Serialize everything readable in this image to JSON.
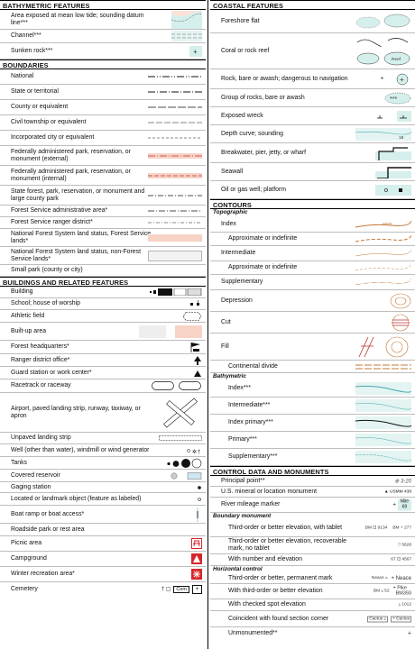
{
  "left": {
    "bathymetric": {
      "header": "BATHYMETRIC FEATURES",
      "items": [
        "Area exposed at mean low tide; sounding datum line***",
        "Channel***",
        "Sunken rock***"
      ]
    },
    "boundaries": {
      "header": "BOUNDARIES",
      "items": [
        "National",
        "State or territorial",
        "County or equivalent",
        "Civil township or equivalent",
        "Incorporated city or equivalent",
        "Federally administered park, reservation, or monument (external)",
        "Federally administered park, reservation, or monument (internal)",
        "State forest, park, reservation, or monument and large county park",
        "Forest Service administrative area*",
        "Forest Service ranger district*",
        "National Forest System land status, Forest Service lands*",
        "National Forest System land status, non-Forest Service lands*",
        "Small park (county or city)"
      ]
    },
    "buildings": {
      "header": "BUILDINGS AND RELATED FEATURES",
      "items": [
        "Building",
        "School; house of worship",
        "Athletic  field",
        "Built-up area",
        "Forest headquarters*",
        "Ranger district office*",
        "Guard station or work center*",
        "Racetrack or raceway",
        "Airport, paved landing strip, runway, taxiway, or apron",
        "Unpaved landing strip",
        "Well (other than water), windmill or wind generator",
        "Tanks",
        "Covered reservoir",
        "Gaging station",
        "Located or landmark object (feature as labeled)",
        "Boat ramp or boat access*",
        "Roadside park or rest area",
        "Picnic area",
        "Campground",
        "Winter recreation area*",
        "Cemetery"
      ],
      "cemetery_label": "Cem"
    }
  },
  "right": {
    "coastal": {
      "header": "COASTAL FEATURES",
      "items": [
        "Foreshore flat",
        "Coral or rock reef",
        "Rock, bare or awash; dangerous to navigation",
        "Group of rocks, bare or awash",
        "Exposed wreck",
        "Depth curve; sounding",
        "Breakwater, pier, jetty, or wharf",
        "Seawall",
        "Oil or gas well; platform"
      ],
      "reef_label": "Reef",
      "sounding": "18"
    },
    "contours": {
      "header": "CONTOURS",
      "topographic_label": "Topographic",
      "topographic": [
        "Index",
        "Approximate or indefinite",
        "Intermediate",
        "Approximate or indefinite",
        "Supplementary",
        "Depression",
        "Cut",
        "Fill",
        "Continental divide"
      ],
      "index_value": "6000",
      "bathymetric_label": "Bathymetric",
      "bathymetric": [
        "Index***",
        "Intermediate***",
        "Index primary***",
        "Primary***",
        "Supplementary***"
      ]
    },
    "control": {
      "header": "CONTROL DATA AND MONUMENTS",
      "principal_point": "Principal point**",
      "principal_symbol": "3-20",
      "mineral": "U.S. mineral or location monument",
      "mineral_symbol": "USMM 438",
      "river": "River mileage marker",
      "river_mile": "Mile",
      "river_num": "69",
      "boundary_label": "Boundary monument",
      "boundary": [
        "Third-order or better elevation, with tablet",
        "Third-order or better elevation, recoverable mark, no tablet",
        "With number and elevation"
      ],
      "bm1": "BM",
      "bm1_elev": "9134",
      "bm1b": "BM",
      "bm1b_elev": "277",
      "bm2": "5628",
      "bm3_num": "67",
      "bm3_elev": "4567",
      "horizontal_label": "Horizontal control",
      "horizontal": [
        "Third-order or better, permanent mark",
        "With third-order or better elevation",
        "With checked spot elevation",
        "Coincident with found section corner",
        "Unmonumented**"
      ],
      "neace1": "Neace",
      "neace2": "Neace",
      "bm_h": "BM",
      "bm_h_elev": "52",
      "pike": "Pike",
      "pike_bm": "BM393",
      "spot": "1012",
      "cactus1": "Cactus",
      "cactus2": "Cactus"
    }
  },
  "colors": {
    "pink": "#f7d3c6",
    "brown": "#c07a3a",
    "teal": "#7fc4c0",
    "tealfill": "#d5efec",
    "red": "#d7262b"
  }
}
